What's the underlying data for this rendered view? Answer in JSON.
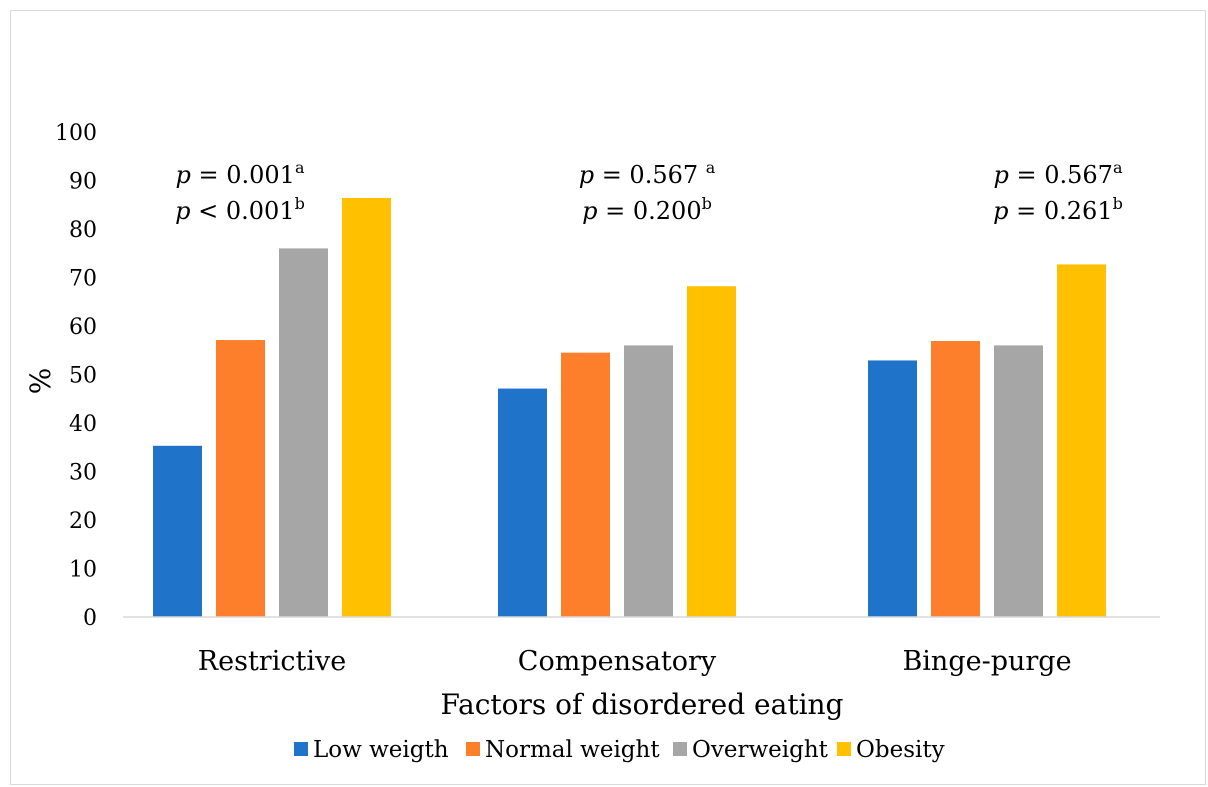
{
  "chart_data": {
    "type": "bar",
    "xlabel": "Factors of disordered eating",
    "ylabel": "%",
    "ylim": [
      0,
      100
    ],
    "yticks": [
      "0",
      "10",
      "20",
      "30",
      "40",
      "50",
      "60",
      "70",
      "80",
      "90",
      "100"
    ],
    "categories": [
      "Restrictive",
      "Compensatory",
      "Binge-purge"
    ],
    "series": [
      {
        "name": "Low weigth",
        "color": "#1f73c8",
        "values": [
          35.3,
          47.1,
          52.9
        ]
      },
      {
        "name": "Normal weight",
        "color": "#fd7f2b",
        "values": [
          57.1,
          54.5,
          56.9
        ]
      },
      {
        "name": "Overweight",
        "color": "#a6a6a6",
        "values": [
          76.0,
          56.0,
          56.0
        ]
      },
      {
        "name": "Obesity",
        "color": "#ffc000",
        "values": [
          86.4,
          68.2,
          72.7
        ]
      }
    ],
    "annotations": [
      {
        "line1": {
          "p": "p",
          "rest": " = 0.001",
          "sup": "a"
        },
        "line2": {
          "p": "p",
          "rest": " < 0.001",
          "sup": "b"
        }
      },
      {
        "line1": {
          "p": "p",
          "rest": " = 0.567 ",
          "sup": "a"
        },
        "line2": {
          "p": "p",
          "rest": " = 0.200",
          "sup": "b"
        }
      },
      {
        "line1": {
          "p": "p",
          "rest": " = 0.567",
          "sup": "a"
        },
        "line2": {
          "p": "p",
          "rest": " = 0.261",
          "sup": "b"
        }
      }
    ],
    "legend_position": "bottom",
    "grid": false
  }
}
